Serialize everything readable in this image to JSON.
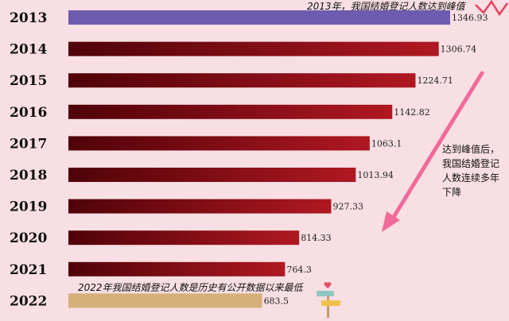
{
  "chart_data": {
    "type": "bar",
    "orientation": "horizontal",
    "categories": [
      "2013",
      "2014",
      "2015",
      "2016",
      "2017",
      "2018",
      "2019",
      "2020",
      "2021",
      "2022"
    ],
    "values": [
      1346.93,
      1306.74,
      1224.71,
      1142.82,
      1063.1,
      1013.94,
      927.33,
      814.33,
      764.3,
      683.5
    ],
    "value_labels": [
      "1346.93",
      "1306.74",
      "1224.71",
      "1142.82",
      "1063.1",
      "1013.94",
      "927.33",
      "814.33",
      "764.3",
      "683.5"
    ],
    "xlim": [
      0,
      1346.93
    ],
    "colors": {
      "peak": "#6d5bb0",
      "lowest": "#d4b07a",
      "bar_dark": "#4f0208",
      "bar_light": "#b01822",
      "arrow": "#f06a9a",
      "background": "#f8dfe3"
    },
    "annotations": {
      "peak_note": "2013年，我国结婚登记人数达到峰值",
      "lowest_note": "2022年我国结婚登记人数是历史有公开数据以来最低",
      "trend_note": [
        "达到峰值后，",
        "我国结婚登记",
        "人数连续多年",
        "下降"
      ]
    }
  }
}
